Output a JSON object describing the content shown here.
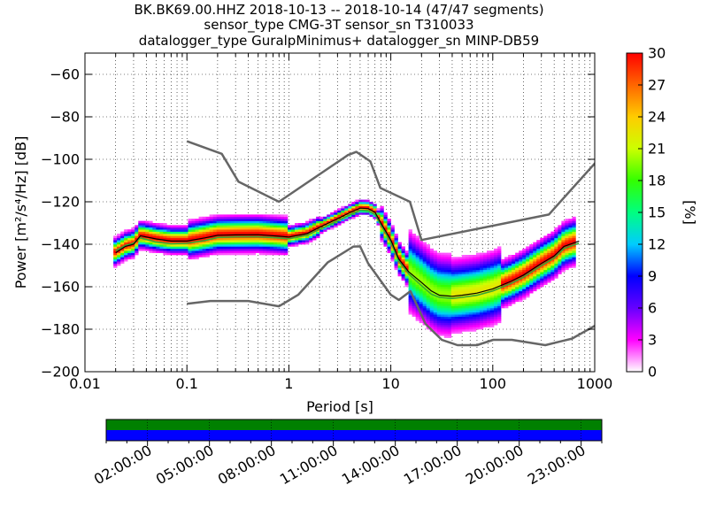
{
  "figure": {
    "title_lines": [
      "BK.BK69.00.HHZ   2018-10-13 -- 2018-10-14  (47/47 segments)",
      "sensor_type CMG-3T sensor_sn T310033",
      "datalogger_type GuralpMinimus+ datalogger_sn MINP-DB59"
    ]
  },
  "chart_data": [
    {
      "type": "heatmap",
      "title": "BK.BK69.00.HHZ   2018-10-13 -- 2018-10-14  (47/47 segments)",
      "xlabel": "Period [s]",
      "ylabel": "Power [m²/s⁴/Hz] [dB]",
      "xscale": "log",
      "xlim": [
        0.01,
        1000
      ],
      "ylim": [
        -200,
        -50
      ],
      "x_ticks": [
        0.01,
        0.1,
        1,
        10,
        100,
        1000
      ],
      "x_tick_labels": [
        "0.01",
        "0.1",
        "1",
        "10",
        "100",
        "1000"
      ],
      "y_ticks": [
        -200,
        -180,
        -160,
        -140,
        -120,
        -100,
        -80,
        -60
      ],
      "grid": true,
      "colorbar": {
        "label": "[%]",
        "range": [
          0,
          30
        ],
        "ticks": [
          0,
          3,
          6,
          9,
          12,
          15,
          18,
          21,
          24,
          27,
          30
        ],
        "colormap": [
          "#ffffff",
          "#ff00ff",
          "#6600ff",
          "#0000ff",
          "#00ccff",
          "#00ff80",
          "#33ff00",
          "#ccff00",
          "#ffcc00",
          "#ff6600",
          "#ff0000"
        ]
      },
      "noise_model_color": "#666666",
      "noise_models": [
        {
          "name": "upper",
          "x": [
            0.1,
            0.22,
            0.32,
            0.8,
            3.8,
            4.6,
            6.3,
            7.9,
            15.4,
            20,
            354.8,
            10000
          ],
          "y": [
            -91.5,
            -97.4,
            -110.5,
            -120,
            -98,
            -96.5,
            -101,
            -113.5,
            -120,
            -138,
            -126,
            -48.5
          ]
        },
        {
          "name": "lower",
          "x": [
            0.1,
            0.17,
            0.4,
            0.8,
            1.24,
            2.4,
            4.3,
            5,
            6,
            10,
            12,
            15.6,
            21.9,
            31.6,
            45,
            70,
            101,
            154,
            328,
            600,
            10000
          ],
          "y": [
            -168,
            -166.7,
            -166.7,
            -169.2,
            -163.7,
            -148.6,
            -141.1,
            -141,
            -149,
            -163.8,
            -166.2,
            -162.1,
            -177.5,
            -185,
            -187.5,
            -187.5,
            -185,
            -185,
            -187.5,
            -184.4,
            -151.5
          ]
        }
      ],
      "mean_curve": {
        "color": "#000000",
        "x": [
          0.02,
          0.025,
          0.03,
          0.035,
          0.05,
          0.07,
          0.1,
          0.15,
          0.2,
          0.3,
          0.5,
          0.8,
          1.0,
          1.5,
          2,
          3,
          4,
          5,
          6,
          7,
          8,
          10,
          12,
          15,
          20,
          25,
          30,
          40,
          50,
          70,
          100,
          150,
          200,
          300,
          400,
          500,
          700
        ],
        "y": [
          -144,
          -141,
          -140,
          -136,
          -137.5,
          -138.5,
          -138.5,
          -137,
          -135.8,
          -135.6,
          -135.5,
          -136.2,
          -136.6,
          -135,
          -132,
          -128,
          -125,
          -123,
          -123.2,
          -125,
          -130,
          -138,
          -147,
          -153,
          -158,
          -162,
          -164,
          -164.5,
          -164,
          -163,
          -161,
          -157.5,
          -154.5,
          -149,
          -145.5,
          -141,
          -138.5
        ]
      },
      "mode_curve": {
        "color": "#33aa33",
        "x": [
          0.02,
          0.025,
          0.03,
          0.035,
          0.05,
          0.07,
          0.1,
          0.15,
          0.2,
          0.3,
          0.5,
          0.8,
          1.0,
          1.5,
          2,
          3,
          4,
          5,
          6,
          7,
          8,
          10,
          12,
          15,
          20,
          25,
          30,
          40,
          50,
          70,
          100,
          150,
          200,
          300,
          400,
          500,
          700
        ],
        "y": [
          -143,
          -140.5,
          -139.5,
          -137,
          -139,
          -139.8,
          -139.5,
          -138.3,
          -136.8,
          -136.5,
          -136.5,
          -137,
          -137.4,
          -135.8,
          -133,
          -129,
          -126,
          -124,
          -124.2,
          -126,
          -131,
          -139,
          -148,
          -154,
          -159.5,
          -163.5,
          -165,
          -165.5,
          -165,
          -164,
          -162,
          -158.5,
          -155.5,
          -150,
          -146.5,
          -142,
          -139.5
        ]
      }
    },
    {
      "type": "timeline",
      "tick_labels": [
        "02:00:00",
        "05:00:00",
        "08:00:00",
        "11:00:00",
        "14:00:00",
        "17:00:00",
        "20:00:00",
        "23:00:00"
      ],
      "tick_hours": [
        2,
        5,
        8,
        11,
        14,
        17,
        20,
        23
      ],
      "range_hours": [
        0,
        24
      ],
      "bands": [
        {
          "name": "data available",
          "color": "#008000",
          "from": 0,
          "to": 24
        },
        {
          "name": "used",
          "color": "#0000ff",
          "from": 0,
          "to": 24
        }
      ]
    }
  ]
}
